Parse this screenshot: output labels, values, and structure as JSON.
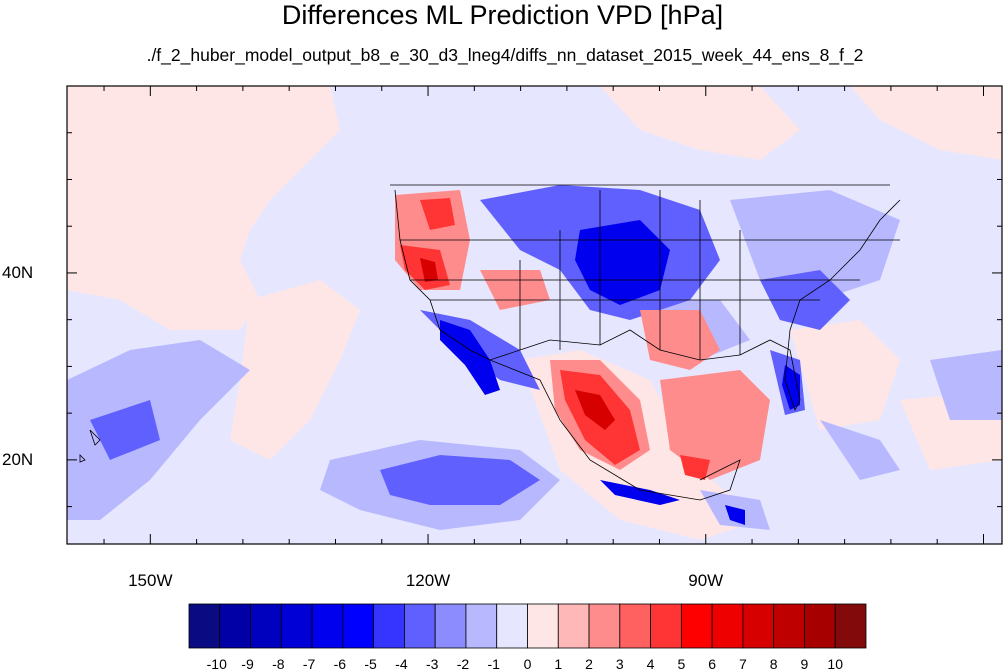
{
  "title": "Differences ML Prediction VPD [hPa]",
  "subtitle": "./f_2_huber_model_output_b8_e_30_d3_lneg4/diffs_nn_dataset_2015_week_44_ens_8_f_2",
  "axes": {
    "y_ticks": [
      {
        "label": "40N",
        "lat": 40
      },
      {
        "label": "20N",
        "lat": 20
      }
    ],
    "x_ticks": [
      {
        "label": "150W",
        "lon": -150
      },
      {
        "label": "120W",
        "lon": -120
      },
      {
        "label": "90W",
        "lon": -90
      }
    ],
    "lon_range": [
      -159,
      -58
    ],
    "lat_range": [
      11,
      60
    ]
  },
  "colorbar": {
    "labels": [
      "-10",
      "-9",
      "-8",
      "-7",
      "-6",
      "-5",
      "-4",
      "-3",
      "-2",
      "-1",
      "0",
      "1",
      "2",
      "3",
      "4",
      "5",
      "6",
      "7",
      "8",
      "9",
      "10"
    ],
    "colors": [
      "#0a0a82",
      "#0000a6",
      "#0000bf",
      "#0000d6",
      "#0000ee",
      "#0000ff",
      "#3535ff",
      "#6060ff",
      "#8c8cff",
      "#b8b8ff",
      "#e6e6ff",
      "#ffe6e6",
      "#ffb8b8",
      "#ff8c8c",
      "#ff6060",
      "#ff3535",
      "#ff0000",
      "#ee0000",
      "#d60000",
      "#bf0000",
      "#a60000",
      "#820a0a"
    ]
  },
  "background_color": "#e6e6ff"
}
